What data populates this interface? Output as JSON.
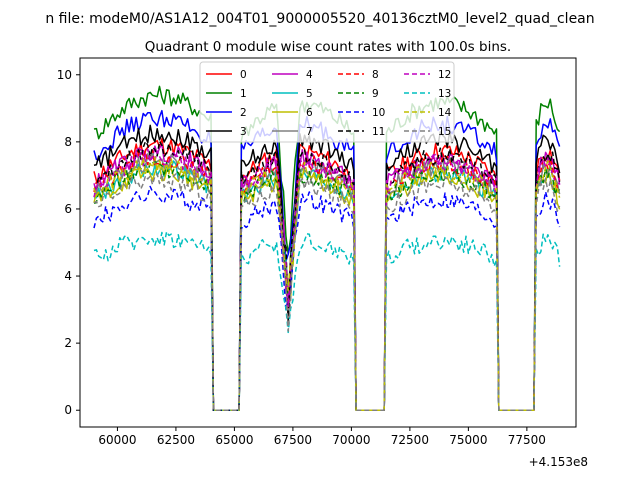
{
  "chart_data": {
    "type": "line",
    "suptitle": "n file: modeM0/AS1A12_004T01_9000005520_40136cztM0_level2_quad_clean",
    "title": "Quadrant 0 module wise count rates with 100.0s bins.",
    "xlabel": "",
    "ylabel": "",
    "x_offset_label": "+4.153e8",
    "xlim": [
      58400,
      79600
    ],
    "ylim": [
      -0.5,
      10.5
    ],
    "x_ticks": [
      60000,
      62500,
      65000,
      67500,
      70000,
      72500,
      75000,
      77500
    ],
    "x_tick_labels": [
      "60000",
      "62500",
      "65000",
      "67500",
      "70000",
      "72500",
      "75000",
      "77500"
    ],
    "y_ticks": [
      0,
      2,
      4,
      6,
      8,
      10
    ],
    "y_tick_labels": [
      "0",
      "2",
      "4",
      "6",
      "8",
      "10"
    ],
    "bin_seconds": 100,
    "x_start": 59000,
    "x_end": 78900,
    "gaps": [
      [
        64100,
        65200
      ],
      [
        70200,
        71400
      ],
      [
        76300,
        77800
      ]
    ],
    "dip": {
      "center": 67300,
      "depth": 0.55
    },
    "legend": {
      "location": "upper center",
      "columns": 4
    },
    "series": [
      {
        "name": "0",
        "color": "#ff0000",
        "dash": "solid",
        "base": 6.9
      },
      {
        "name": "1",
        "color": "#008000",
        "dash": "solid",
        "base": 8.2
      },
      {
        "name": "2",
        "color": "#0000ff",
        "dash": "solid",
        "base": 7.6
      },
      {
        "name": "3",
        "color": "#000000",
        "dash": "solid",
        "base": 7.2
      },
      {
        "name": "4",
        "color": "#bf00bf",
        "dash": "solid",
        "base": 6.7
      },
      {
        "name": "5",
        "color": "#00bfbf",
        "dash": "solid",
        "base": 6.3
      },
      {
        "name": "6",
        "color": "#bfbf00",
        "dash": "solid",
        "base": 6.2
      },
      {
        "name": "7",
        "color": "#808080",
        "dash": "solid",
        "base": 6.5
      },
      {
        "name": "8",
        "color": "#ff0000",
        "dash": "dashed",
        "base": 6.6
      },
      {
        "name": "9",
        "color": "#008000",
        "dash": "dashed",
        "base": 6.3
      },
      {
        "name": "10",
        "color": "#0000ff",
        "dash": "dashed",
        "base": 5.6
      },
      {
        "name": "11",
        "color": "#000000",
        "dash": "dashed",
        "base": 6.8
      },
      {
        "name": "12",
        "color": "#bf00bf",
        "dash": "dashed",
        "base": 6.6
      },
      {
        "name": "13",
        "color": "#00bfbf",
        "dash": "dashed",
        "base": 4.5
      },
      {
        "name": "14",
        "color": "#bfbf00",
        "dash": "dashed",
        "base": 6.4
      },
      {
        "name": "15",
        "color": "#808080",
        "dash": "dashed",
        "base": 6.0
      }
    ]
  }
}
